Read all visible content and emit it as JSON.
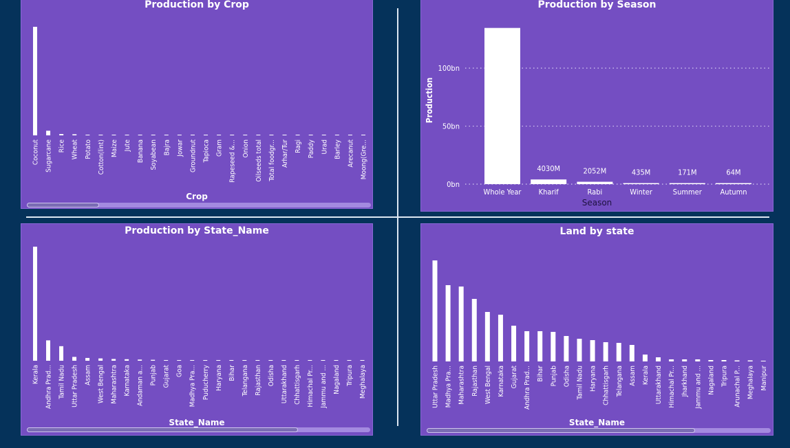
{
  "colors": {
    "background": "#05325a",
    "panel": "#744ec2",
    "bar": "#ffffff"
  },
  "chart_data": [
    {
      "type": "bar",
      "title": "Production by Crop",
      "xlabel": "Crop",
      "ylabel": "",
      "categories": [
        "Coconut",
        "Sugarcane",
        "Rice",
        "Wheat",
        "Potato",
        "Cotton(lint)",
        "Maize",
        "Jute",
        "Banana",
        "Soyabean",
        "Bajra",
        "Jowar",
        "Groundnut",
        "Tapioca",
        "Gram",
        "Rapeseed &...",
        "Onion",
        "Oilseeds total",
        "Total foodgr...",
        "Arhar/Tur",
        "Ragi",
        "Paddy",
        "Urad",
        "Barley",
        "Arecanut",
        "Moong(Gre..."
      ],
      "values": [
        129.98,
        5.53,
        1.6,
        1.33,
        0.42,
        0.3,
        0.27,
        0.25,
        0.2,
        0.14,
        0.12,
        0.1,
        0.09,
        0.09,
        0.08,
        0.07,
        0.06,
        0.05,
        0.04,
        0.03,
        0.02,
        0.02,
        0.02,
        0.01,
        0.01,
        0.01
      ],
      "unit": "bn",
      "scrollbar_visible_fraction": 0.21
    },
    {
      "type": "bar",
      "title": "Production by Season",
      "xlabel": "Season",
      "ylabel": "Production",
      "categories": [
        "Whole Year",
        "Kharif",
        "Rabi",
        "Winter",
        "Summer",
        "Autumn"
      ],
      "values": [
        134.6,
        4.03,
        2.052,
        0.435,
        0.171,
        0.064
      ],
      "data_labels": [
        "",
        "4030M",
        "2052M",
        "435M",
        "171M",
        "64M"
      ],
      "y_ticks": [
        "0bn",
        "50bn",
        "100bn"
      ],
      "y_tick_values": [
        0,
        50,
        100
      ],
      "ylim": [
        0,
        135
      ],
      "unit": "bn",
      "grid": true
    },
    {
      "type": "bar",
      "title": "Production by State_Name",
      "xlabel": "State_Name",
      "ylabel": "",
      "categories": [
        "Kerala",
        "Andhra Prad...",
        "Tamil Nadu",
        "Uttar Pradesh",
        "Assam",
        "West Bengal",
        "Maharashtra",
        "Karnataka",
        "Andaman a...",
        "Punjab",
        "Gujarat",
        "Goa",
        "Madhya Pra...",
        "Puducherry",
        "Haryana",
        "Bihar",
        "Telangana",
        "Rajasthan",
        "Odisha",
        "Uttarakhand",
        "Chhattisgarh",
        "Himachal Pr...",
        "Jammu and ...",
        "Nagaland",
        "Tripura",
        "Meghalaya"
      ],
      "values": [
        98,
        17.5,
        12.5,
        3.3,
        2.4,
        2.0,
        1.5,
        1.3,
        1.0,
        0.8,
        0.6,
        0.5,
        0.45,
        0.4,
        0.35,
        0.3,
        0.25,
        0.2,
        0.18,
        0.15,
        0.12,
        0.1,
        0.08,
        0.06,
        0.05,
        0.04
      ],
      "scrollbar_visible_fraction": 0.79
    },
    {
      "type": "bar",
      "title": "Land by state",
      "xlabel": "State_Name",
      "ylabel": "",
      "categories": [
        "Uttar Pradesh",
        "Madhya Pra...",
        "Maharashtra",
        "Rajasthan",
        "West Bengal",
        "Karnataka",
        "Gujarat",
        "Andhra Prad...",
        "Bihar",
        "Punjab",
        "Odisha",
        "Tamil Nadu",
        "Haryana",
        "Chhattisgarh",
        "Telangana",
        "Assam",
        "Kerala",
        "Uttarakhand",
        "Himachal Pr...",
        "Jharkhand",
        "Jammu and ...",
        "Nagaland",
        "Tripura",
        "Arunachal P...",
        "Meghalaya",
        "Manipur"
      ],
      "values": [
        147,
        111,
        109,
        91,
        72,
        68,
        52,
        44,
        44,
        43,
        37,
        33,
        31,
        28,
        27,
        24,
        10,
        6,
        3,
        3,
        3,
        2,
        2,
        1.5,
        1.5,
        1
      ],
      "scrollbar_visible_fraction": 0.78
    }
  ]
}
